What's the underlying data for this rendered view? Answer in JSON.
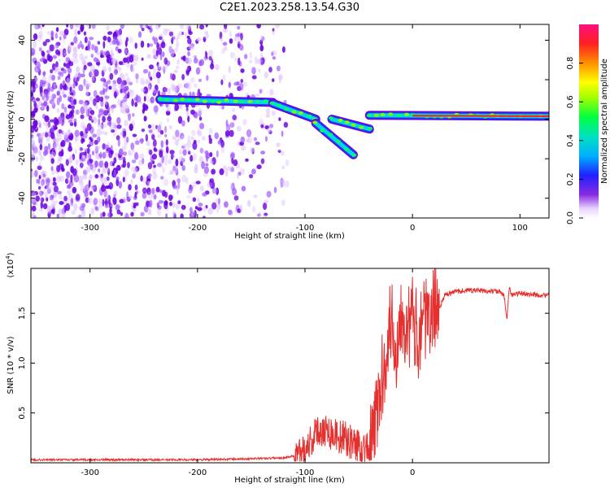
{
  "title": "C2E1.2023.258.13.54.G30",
  "chart_data": [
    {
      "type": "heatmap",
      "xlabel": "Height of straight line (km)",
      "ylabel": "Frequency (Hz)",
      "xlim": [
        -355,
        127
      ],
      "ylim": [
        -50,
        48
      ],
      "xticks": [
        -300,
        -200,
        -100,
        0,
        100
      ],
      "yticks": [
        -40,
        -20,
        0,
        20,
        40
      ],
      "colorbar": {
        "label": "Normalized spectral amplitude",
        "range": [
          0,
          1
        ],
        "ticks": [
          0.0,
          0.2,
          0.4,
          0.6,
          0.8
        ],
        "tick_labels": [
          "0.0",
          "0.2",
          "0.4",
          "0.6",
          "0.8"
        ]
      },
      "features": [
        {
          "x": [
            -235,
            -130
          ],
          "y": [
            10,
            8.5
          ]
        },
        {
          "x": [
            -130,
            -90
          ],
          "y": [
            8,
            0
          ]
        },
        {
          "x": [
            -90,
            -55
          ],
          "y": [
            -2,
            -18
          ]
        },
        {
          "x": [
            -75,
            -40
          ],
          "y": [
            0,
            -5
          ]
        },
        {
          "x": [
            -40,
            127
          ],
          "y": [
            2,
            1.5
          ]
        }
      ],
      "noise_region_x": [
        -355,
        -115
      ]
    },
    {
      "type": "line",
      "xlabel": "Height of straight line (km)",
      "ylabel": "SNR (10 * v/v)",
      "exponent_label": "(x10",
      "exponent_power": "4",
      "xlim": [
        -355,
        127
      ],
      "ylim": [
        0,
        1.95
      ],
      "xticks": [
        -300,
        -200,
        -100,
        0
      ],
      "yticks": [
        0.5,
        1.0,
        1.5
      ],
      "ytick_labels": [
        "0.5",
        "1.0",
        "1.5"
      ],
      "color": "#e53030",
      "series": [
        {
          "x": [
            -355,
            -300,
            -250,
            -200,
            -150,
            -120,
            -105,
            -95,
            -85,
            -75,
            -65,
            -55,
            -45,
            -40,
            -35,
            -30,
            -25,
            -20,
            -15,
            -10,
            -5,
            0,
            5,
            10,
            15,
            20,
            25,
            30,
            35,
            40,
            50,
            60,
            70,
            80,
            85,
            88,
            90,
            92,
            95,
            100,
            110,
            120,
            127
          ],
          "y": [
            0.03,
            0.03,
            0.03,
            0.03,
            0.04,
            0.05,
            0.08,
            0.22,
            0.35,
            0.3,
            0.25,
            0.2,
            0.15,
            0.12,
            0.4,
            0.7,
            1.1,
            1.45,
            1.1,
            1.6,
            1.3,
            1.45,
            1.25,
            1.55,
            1.3,
            1.6,
            1.55,
            1.68,
            1.7,
            1.72,
            1.73,
            1.73,
            1.72,
            1.72,
            1.68,
            1.45,
            1.78,
            1.68,
            1.69,
            1.7,
            1.69,
            1.68,
            1.68
          ]
        }
      ]
    }
  ]
}
